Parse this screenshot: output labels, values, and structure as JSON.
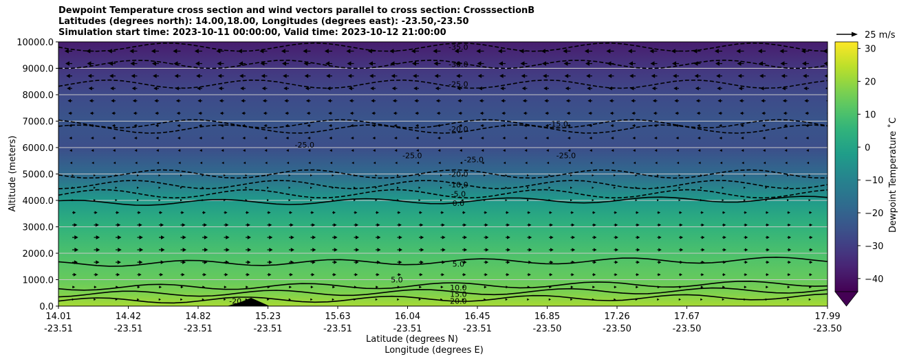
{
  "chart_data": {
    "type": "heatmap",
    "title_lines": [
      "Dewpoint Temperature cross section and wind vectors parallel to cross section: CrosssectionB",
      "Latitudes (degrees north): 14.00,18.00, Longitudes (degrees east): -23.50,-23.50",
      "Simulation start time: 2023-10-11 00:00:00, Valid time: 2023-10-12 21:00:00"
    ],
    "ylabel": "Altitude (meters)",
    "xlabel_lines": [
      "Latitude (degrees N)",
      "Longitude (degrees E)"
    ],
    "ylim": [
      0,
      10000
    ],
    "y_ticks": [
      "0.0",
      "1000.0",
      "2000.0",
      "3000.0",
      "4000.0",
      "5000.0",
      "6000.0",
      "7000.0",
      "8000.0",
      "9000.0",
      "10000.0"
    ],
    "y_tick_values": [
      0,
      1000,
      2000,
      3000,
      4000,
      5000,
      6000,
      7000,
      8000,
      9000,
      10000
    ],
    "x_ticks": [
      {
        "lat": "14.01",
        "lon": "-23.51"
      },
      {
        "lat": "14.42",
        "lon": "-23.51"
      },
      {
        "lat": "14.82",
        "lon": "-23.51"
      },
      {
        "lat": "15.23",
        "lon": "-23.51"
      },
      {
        "lat": "15.63",
        "lon": "-23.51"
      },
      {
        "lat": "16.04",
        "lon": "-23.51"
      },
      {
        "lat": "16.45",
        "lon": "-23.51"
      },
      {
        "lat": "16.85",
        "lon": "-23.50"
      },
      {
        "lat": "17.26",
        "lon": "-23.50"
      },
      {
        "lat": "17.67",
        "lon": "-23.50"
      },
      {
        "lat": "17.99",
        "lon": "-23.50"
      }
    ],
    "grid": "horizontal",
    "colorbar": {
      "label": "Dewpoint Temperature $^\\circ$C",
      "label_display": "Dewpoint Temperature  ˚C",
      "ticks": [
        "30",
        "20",
        "10",
        "0",
        "−10",
        "−20",
        "−30",
        "−40"
      ],
      "tick_values": [
        30,
        20,
        10,
        0,
        -10,
        -20,
        -30,
        -40
      ],
      "range": [
        -44,
        32
      ],
      "colormap": "viridis",
      "extend": "min"
    },
    "wind_key": {
      "label": "25 m/s"
    },
    "contour_levels": [
      {
        "value": -35,
        "label": "-35.0",
        "style": "dashed",
        "altitude_m": 9800
      },
      {
        "value": -30,
        "label": "-30.0",
        "style": "dashed",
        "altitude_m": 9150
      },
      {
        "value": -25,
        "label": "-25.0",
        "style": "dashed",
        "altitude_m": 8400
      },
      {
        "value": -20,
        "label": "-20.0",
        "style": "dashed",
        "altitude_m": 6700
      },
      {
        "value": -15,
        "label": "-15.0",
        "style": "dashed",
        "altitude_m": 6900
      },
      {
        "value": -20,
        "label": "-20.0",
        "style": "dashed",
        "altitude_m": 5000
      },
      {
        "value": -10,
        "label": "-10.0",
        "style": "dashed",
        "altitude_m": 4600
      },
      {
        "value": -5,
        "label": "-5.0",
        "style": "dashed",
        "altitude_m": 4250
      },
      {
        "value": 0,
        "label": "0.0",
        "style": "solid",
        "altitude_m": 3900
      },
      {
        "value": 5,
        "label": "5.0",
        "style": "solid",
        "altitude_m": 1600
      },
      {
        "value": 10,
        "label": "10.0",
        "style": "solid",
        "altitude_m": 700
      },
      {
        "value": 15,
        "label": "15.0",
        "style": "solid",
        "altitude_m": 450
      },
      {
        "value": 20,
        "label": "20.0",
        "style": "solid",
        "altitude_m": 200
      }
    ],
    "extra_contour_labels": [
      {
        "label": "-25.0",
        "x_frac": 0.32,
        "altitude_m": 6100
      },
      {
        "label": "-25.0",
        "x_frac": 0.46,
        "altitude_m": 5700
      },
      {
        "label": "-25.0",
        "x_frac": 0.54,
        "altitude_m": 5550
      },
      {
        "label": "-25.0",
        "x_frac": 0.66,
        "altitude_m": 5700
      },
      {
        "label": "5.0",
        "x_frac": 0.44,
        "altitude_m": 1000
      },
      {
        "label": "-20",
        "x_frac": 0.23,
        "altitude_m": 200
      }
    ],
    "dewpoint_profile": {
      "altitude_m": [
        0,
        500,
        1000,
        2000,
        3000,
        4000,
        5000,
        6000,
        7000,
        8000,
        9000,
        10000
      ],
      "dewpoint_c": [
        22,
        17,
        14,
        10,
        5,
        -3,
        -18,
        -26,
        -24,
        -27,
        -32,
        -38
      ]
    }
  }
}
